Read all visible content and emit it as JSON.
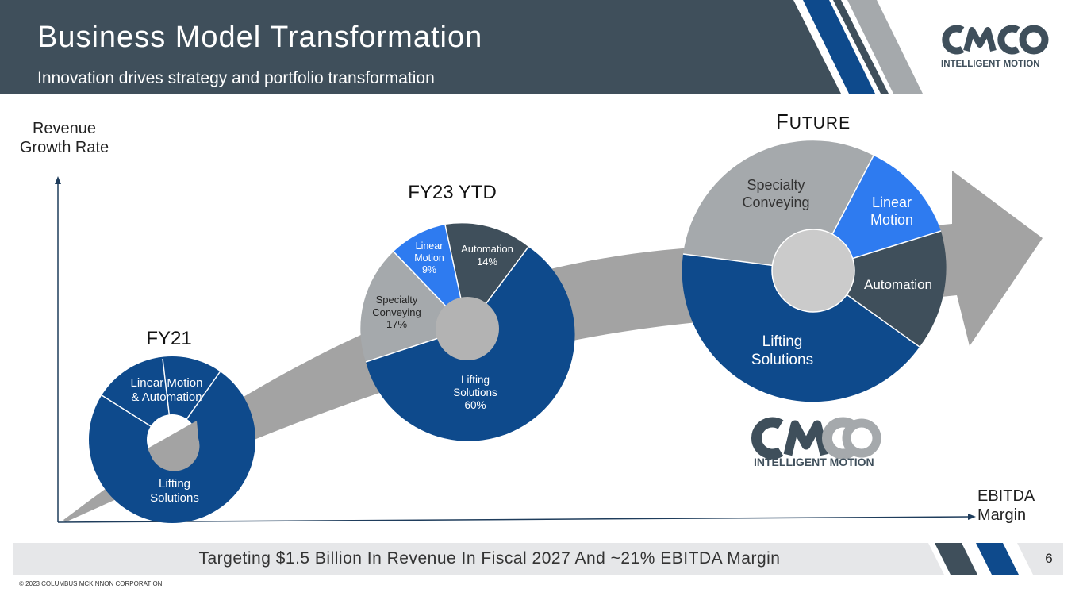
{
  "header": {
    "title": "Business Model Transformation",
    "subtitle": "Innovation drives strategy and portfolio transformation",
    "logo_text": "INTELLIGENT MOTION"
  },
  "axes": {
    "y_label": "Revenue\nGrowth Rate",
    "x_label": "EBITDA\nMargin"
  },
  "stages": {
    "fy21": {
      "title": "FY21",
      "segments": [
        {
          "label": "Lifting\nSolutions",
          "color": "#0e4a8c"
        },
        {
          "label": "Linear Motion\n& Automation",
          "color": "#0e4a8c"
        }
      ]
    },
    "fy23": {
      "title": "FY23 YTD",
      "segments": [
        {
          "label": "Automation\n14%",
          "color": "#3f4f5b"
        },
        {
          "label": "Lifting\nSolutions\n60%",
          "color": "#0e4a8c"
        },
        {
          "label": "Specialty\nConveying\n17%",
          "color": "#a5a9ac"
        },
        {
          "label": "Linear\nMotion\n9%",
          "color": "#2e7bf0"
        }
      ]
    },
    "future": {
      "title_initial": "F",
      "title_rest": "UTURE",
      "segments": [
        {
          "label": "Linear\nMotion",
          "color": "#2e7bf0"
        },
        {
          "label": "Automation",
          "color": "#3f4f5b"
        },
        {
          "label": "Lifting\nSolutions",
          "color": "#0e4a8c"
        },
        {
          "label": "Specialty\nConveying",
          "color": "#a5a9ac"
        }
      ]
    }
  },
  "center_logo_text": "INTELLIGENT MOTION",
  "footer": {
    "tagline": "Targeting $1.5 Billion In Revenue In Fiscal 2027 And ~21% EBITDA Margin",
    "page_number": "6",
    "copyright": "© 2023 COLUMBUS MCKINNON CORPORATION"
  },
  "colors": {
    "header_bg": "#3f4f5b",
    "navy": "#0e4a8c",
    "blue": "#2e7bf0",
    "slate": "#3f4f5b",
    "gray": "#a5a9ac",
    "arrow_gray": "#a3a3a3"
  }
}
